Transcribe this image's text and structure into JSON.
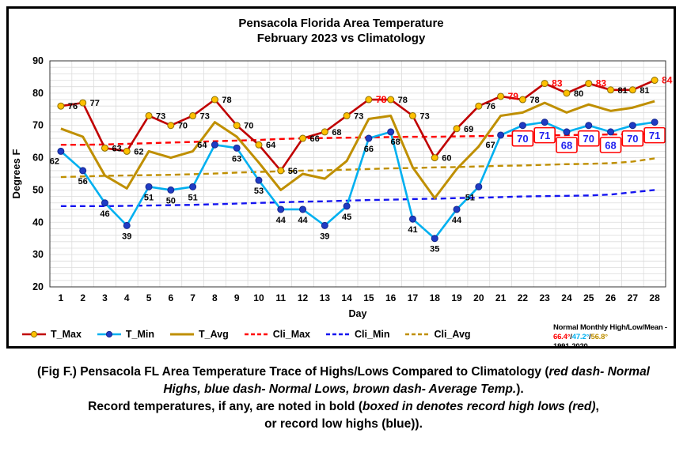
{
  "chart_data": {
    "type": "line",
    "title": "Pensacola Florida Area Temperature",
    "subtitle": "February 2023 vs Climatology",
    "xlabel": "Day",
    "ylabel": "Degrees F",
    "x": [
      1,
      2,
      3,
      4,
      5,
      6,
      7,
      8,
      9,
      10,
      11,
      12,
      13,
      14,
      15,
      16,
      17,
      18,
      19,
      20,
      21,
      22,
      23,
      24,
      25,
      26,
      27,
      28
    ],
    "ylim": [
      20,
      90
    ],
    "ytick_step": 10,
    "grid": "light gray, vertical per day, horizontal every 2 degrees",
    "legend_position": "bottom",
    "series": [
      {
        "name": "T_Max",
        "line_color": "#C00000",
        "dash": false,
        "width": 2.6,
        "marker": "circle",
        "marker_fill": "#FFC000",
        "marker_stroke": "#8A6D00",
        "show_labels": true,
        "values": [
          76,
          77,
          63,
          62,
          73,
          70,
          73,
          78,
          70,
          64,
          56,
          66,
          68,
          73,
          78,
          78,
          73,
          60,
          69,
          76,
          79,
          78,
          83,
          80,
          83,
          81,
          81,
          84
        ],
        "record_high_days": [
          15,
          21,
          23,
          25,
          28
        ],
        "record_label_color": "#FF0000"
      },
      {
        "name": "T_Min",
        "line_color": "#00B0F0",
        "dash": false,
        "width": 2.6,
        "marker": "circle",
        "marker_fill": "#1F3BC4",
        "marker_stroke": "#16288E",
        "show_labels": true,
        "values": [
          62,
          56,
          46,
          39,
          51,
          50,
          51,
          64,
          63,
          53,
          44,
          44,
          39,
          45,
          66,
          68,
          41,
          35,
          44,
          51,
          67,
          70,
          71,
          68,
          70,
          68,
          70,
          71
        ],
        "record_high_low_boxed_days": [
          22,
          23,
          24,
          25,
          26,
          27,
          28
        ],
        "box_border_color": "#FF0000",
        "box_text_color": "#1F1FEE"
      },
      {
        "name": "T_Avg",
        "line_color": "#BF8F00",
        "dash": false,
        "width": 3,
        "marker": "none",
        "show_labels": false,
        "values": [
          69,
          66.5,
          54.5,
          50.5,
          62,
          60,
          62,
          71,
          66.5,
          58.5,
          50,
          55,
          53.5,
          59,
          72,
          73,
          57,
          47.5,
          56.5,
          63.5,
          73,
          74,
          77,
          74,
          76.5,
          74.5,
          75.5,
          77.5
        ]
      },
      {
        "name": "Cli_Max",
        "line_color": "#FF0000",
        "dash": true,
        "width": 2.4,
        "marker": "none",
        "show_labels": false,
        "values": [
          64,
          64,
          64.1,
          64.3,
          64.5,
          64.7,
          64.9,
          65.1,
          65.3,
          65.5,
          65.8,
          66,
          66.1,
          66.2,
          66.3,
          66.4,
          66.5,
          66.5,
          66.6,
          66.7,
          66.8,
          66.8,
          66.9,
          67,
          67.1,
          67.2,
          67.3,
          67.4
        ]
      },
      {
        "name": "Cli_Min",
        "line_color": "#1414F0",
        "dash": true,
        "width": 2.4,
        "marker": "none",
        "show_labels": false,
        "values": [
          45,
          45,
          45,
          45.1,
          45.2,
          45.3,
          45.4,
          45.6,
          45.8,
          46,
          46.2,
          46.4,
          46.5,
          46.7,
          46.9,
          47,
          47.2,
          47.3,
          47.5,
          47.6,
          47.8,
          48,
          48.1,
          48.2,
          48.3,
          48.6,
          49.3,
          50
        ]
      },
      {
        "name": "Cli_Avg",
        "line_color": "#BF8F00",
        "dash": true,
        "width": 2.4,
        "marker": "none",
        "show_labels": false,
        "values": [
          54,
          54.2,
          54.4,
          54.5,
          54.6,
          54.7,
          54.9,
          55.1,
          55.4,
          55.6,
          55.8,
          56,
          56.1,
          56.3,
          56.5,
          56.7,
          56.8,
          57,
          57.1,
          57.3,
          57.5,
          57.6,
          57.8,
          58,
          58.1,
          58.3,
          58.8,
          59.8
        ]
      }
    ],
    "label_layout": {
      "tmax_default_offset": [
        9,
        4
      ],
      "tmin_default_offset": [
        0,
        17
      ],
      "tmin_overrides": {
        "1": [
          -8,
          16
        ],
        "8": [
          -16,
          4
        ],
        "16": [
          6,
          16
        ],
        "20": [
          -11,
          17
        ],
        "21": [
          -13,
          16
        ]
      }
    }
  },
  "legend_note": {
    "line1_segments": [
      {
        "text": "Normal Monthly High/Low/Mean - ",
        "color": "#000000"
      },
      {
        "text": "66.4°",
        "color": "#FF0000"
      },
      {
        "text": "/",
        "color": "#000000"
      },
      {
        "text": "47.2°",
        "color": "#00B0F0"
      },
      {
        "text": "/",
        "color": "#000000"
      },
      {
        "text": "56.8°",
        "color": "#BF8F00"
      }
    ],
    "line2": "1991-2020"
  },
  "caption": {
    "lines": [
      [
        {
          "text": "(Fig F.) Pensacola FL Area Temperature Trace of Highs/Lows Compared to Climatology (",
          "italic": false
        },
        {
          "text": "red dash- Normal",
          "italic": true
        }
      ],
      [
        {
          "text": "Highs, blue dash- Normal Lows, brown dash- Average Temp.",
          "italic": true
        },
        {
          "text": ").",
          "italic": false
        }
      ],
      [
        {
          "text": "Record temperatures, if any, are noted in bold (",
          "italic": false
        },
        {
          "text": "boxed in denotes record high lows (red)",
          "italic": true
        },
        {
          "text": ",",
          "italic": false
        }
      ],
      [
        {
          "text": "or record low highs (blue)).",
          "italic": false
        }
      ]
    ]
  }
}
